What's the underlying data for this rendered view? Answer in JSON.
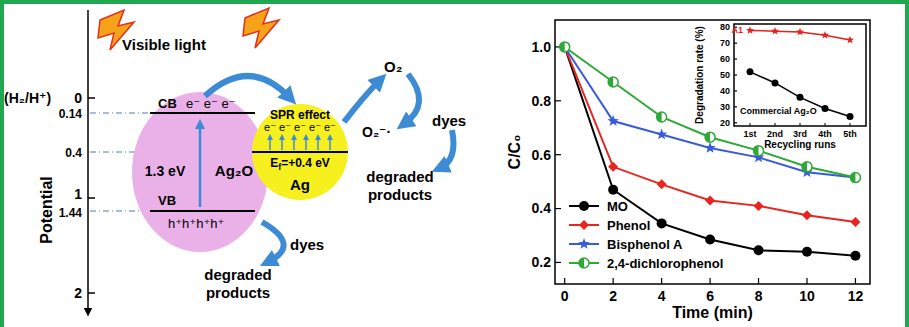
{
  "diagram": {
    "light_label": "Visible light",
    "reference": "(H₂/H⁺)",
    "axis_label": "Potential",
    "axis_ticks": [
      "0",
      "1",
      "2"
    ],
    "levels": [
      "0.14",
      "0.4",
      "1.44"
    ],
    "semiconductor": {
      "name": "Ag₂O",
      "band_gap": "1.3 eV",
      "cb": "CB",
      "vb": "VB",
      "electrons": "e⁻ e⁻ e⁻",
      "holes": "h⁺h⁺h⁺h⁺"
    },
    "metal": {
      "name": "Ag",
      "effect": "SPR effect",
      "electrons": "e⁻ e⁻ e⁻ e⁻ e⁻",
      "fermi_symbol": "E",
      "fermi_subscript": "f",
      "fermi_value": "=+0.4 eV"
    },
    "oxygen": "O₂",
    "superoxide": "O₂⁻·",
    "pollutant": [
      "dyes",
      "dyes"
    ],
    "products": [
      [
        "degraded",
        "products"
      ],
      [
        "degraded",
        "products"
      ]
    ]
  },
  "chart_data": [
    {
      "type": "line",
      "xlabel": "Time (min)",
      "ylabel": "C/C₀",
      "x": [
        0,
        2,
        4,
        6,
        8,
        10,
        12
      ],
      "xlim": [
        -0.4,
        12.6
      ],
      "xticks": [
        0,
        2,
        4,
        6,
        8,
        10,
        12
      ],
      "ylim": [
        0.12,
        1.1
      ],
      "yticks": [
        0.2,
        0.4,
        0.6,
        0.8,
        {
          "value": 1,
          "label": "1.0"
        }
      ],
      "legend": "lower left",
      "series": [
        {
          "name": "MO",
          "color": "#000000",
          "marker": "circle",
          "values": [
            1.0,
            0.47,
            0.345,
            0.285,
            0.245,
            0.24,
            0.225
          ]
        },
        {
          "name": "Phenol",
          "color": "#e8251f",
          "marker": "diamond",
          "values": [
            1.0,
            0.555,
            0.49,
            0.43,
            0.41,
            0.375,
            0.35
          ]
        },
        {
          "name": "Bisphenol A",
          "color": "#3a5bd9",
          "marker": "star",
          "values": [
            1.0,
            0.725,
            0.675,
            0.625,
            0.59,
            0.535,
            0.515
          ]
        },
        {
          "name": "2,4-dichlorophenol",
          "color": "#2ea836",
          "marker": "half_circle",
          "values": [
            1.0,
            0.87,
            0.74,
            0.665,
            0.615,
            0.555,
            0.515
          ]
        }
      ]
    },
    {
      "type": "line",
      "xlabel": "Recycling runs",
      "ylabel": "Degradation rate (%)",
      "categories": [
        "1st",
        "2nd",
        "3rd",
        "4th",
        "5th"
      ],
      "ylim": [
        18,
        82
      ],
      "yticks": [
        20,
        30,
        40,
        50,
        60,
        70,
        80
      ],
      "series": [
        {
          "name": "A1",
          "color": "#e8201c",
          "marker": "star",
          "values": [
            78,
            77.5,
            77,
            75,
            72
          ]
        },
        {
          "name": "Commercial Ag₂O",
          "color": "#000000",
          "marker": "circle",
          "values": [
            52,
            45,
            36,
            29,
            24
          ]
        }
      ]
    }
  ]
}
